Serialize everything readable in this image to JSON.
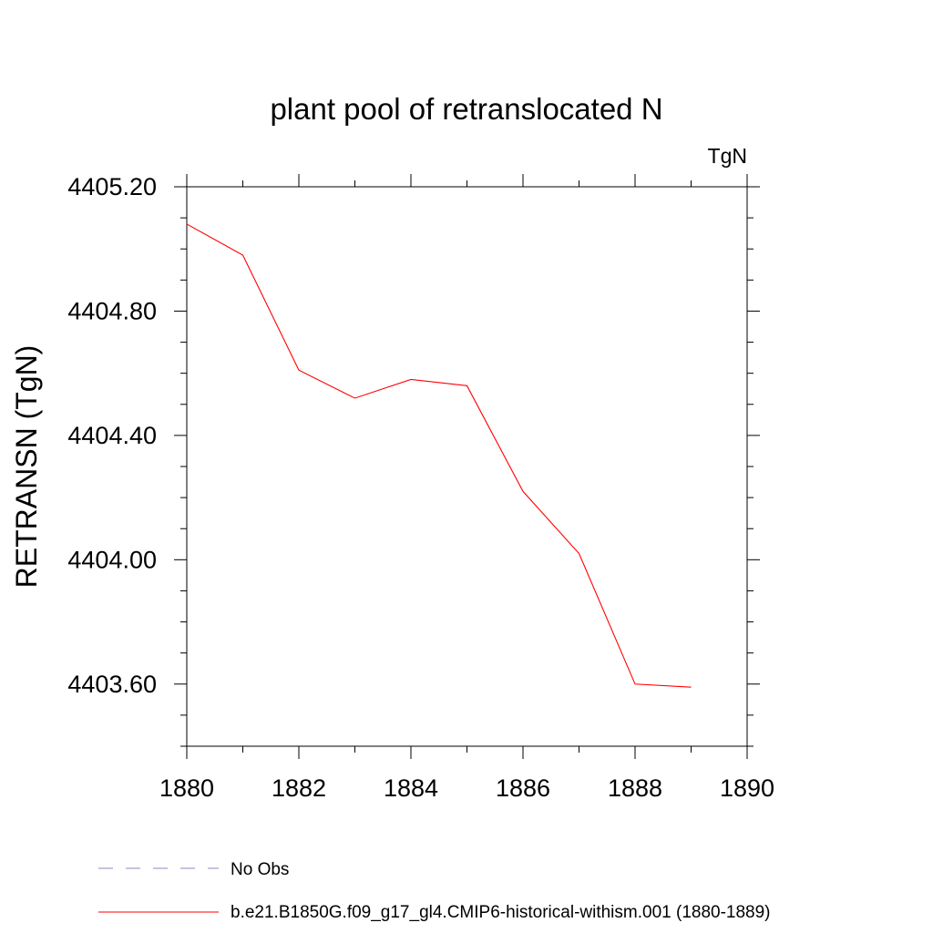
{
  "chart_data": {
    "type": "line",
    "title": "plant pool of retranslocated N",
    "units_label": "TgN",
    "ylabel": "RETRANSN  (TgN)",
    "xlabel": "",
    "xlim": [
      1880,
      1890
    ],
    "ylim": [
      4403.4,
      4405.2
    ],
    "x_ticks": [
      1880,
      1882,
      1884,
      1886,
      1888,
      1890
    ],
    "y_ticks": [
      4405.2,
      4404.8,
      4404.4,
      4404.0,
      4403.6
    ],
    "y_tick_labels": [
      "4405.20",
      "4404.80",
      "4404.40",
      "4404.00",
      "4403.60"
    ],
    "x": [
      1880,
      1881,
      1882,
      1883,
      1884,
      1885,
      1886,
      1887,
      1888,
      1889
    ],
    "series": [
      {
        "name": "b.e21.B1850G.f09_g17_gl4.CMIP6-historical-withism.001 (1880-1889)",
        "color": "#ff0000",
        "values": [
          4405.08,
          4404.98,
          4404.61,
          4404.52,
          4404.58,
          4404.56,
          4404.22,
          4404.02,
          4403.6,
          4403.59
        ]
      }
    ],
    "legend": [
      {
        "name": "No Obs",
        "color": "#8888cc",
        "style": "dashed"
      },
      {
        "name": "b.e21.B1850G.f09_g17_gl4.CMIP6-historical-withism.001 (1880-1889)",
        "color": "#ff0000",
        "style": "solid"
      }
    ],
    "legend_placement": "bottom",
    "grid": false
  }
}
